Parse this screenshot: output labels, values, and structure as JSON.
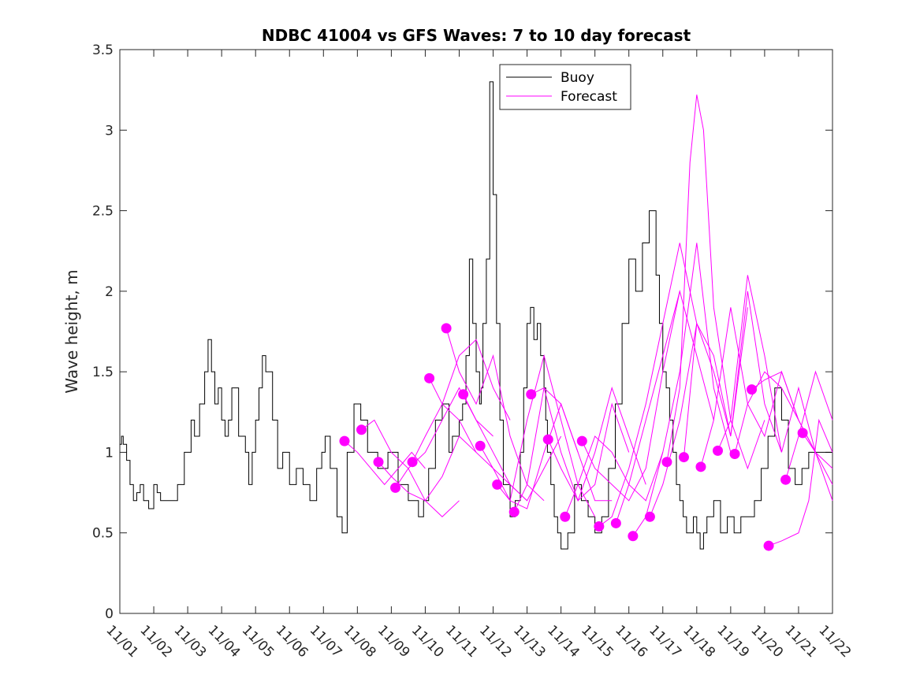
{
  "chart_data": {
    "type": "line",
    "title": "NDBC 41004 vs GFS Waves: 7 to 10 day forecast",
    "xlabel": "",
    "ylabel": "Wave height, m",
    "xlim": [
      0,
      21
    ],
    "ylim": [
      0,
      3.5
    ],
    "x_tick_labels": [
      "11/01",
      "11/02",
      "11/03",
      "11/04",
      "11/05",
      "11/06",
      "11/07",
      "11/08",
      "11/09",
      "11/10",
      "11/11",
      "11/12",
      "11/13",
      "11/14",
      "11/15",
      "11/16",
      "11/17",
      "11/18",
      "11/19",
      "11/20",
      "11/21",
      "11/22"
    ],
    "y_tick_labels": [
      "0",
      "0.5",
      "1",
      "1.5",
      "2",
      "2.5",
      "3",
      "3.5"
    ],
    "y_tick_values": [
      0,
      0.5,
      1,
      1.5,
      2,
      2.5,
      3,
      3.5
    ],
    "legend": [
      "Buoy",
      "Forecast"
    ],
    "legend_position": "top-center",
    "colors": {
      "buoy": "#000000",
      "forecast": "#ff00ff"
    },
    "series": [
      {
        "name": "Buoy",
        "x": [
          0,
          0.05,
          0.1,
          0.2,
          0.3,
          0.4,
          0.5,
          0.6,
          0.7,
          0.85,
          1.0,
          1.1,
          1.2,
          1.3,
          1.5,
          1.7,
          1.9,
          2.1,
          2.2,
          2.35,
          2.5,
          2.6,
          2.7,
          2.8,
          2.9,
          3.0,
          3.1,
          3.2,
          3.3,
          3.5,
          3.7,
          3.8,
          3.9,
          4.0,
          4.1,
          4.2,
          4.3,
          4.5,
          4.65,
          4.8,
          5.0,
          5.2,
          5.4,
          5.6,
          5.8,
          5.95,
          6.05,
          6.2,
          6.4,
          6.55,
          6.7,
          6.9,
          7.1,
          7.3,
          7.6,
          7.9,
          8.2,
          8.5,
          8.8,
          8.95,
          9.1,
          9.3,
          9.5,
          9.7,
          9.8,
          9.9,
          10.0,
          10.1,
          10.2,
          10.3,
          10.4,
          10.5,
          10.6,
          10.65,
          10.7,
          10.8,
          10.9,
          11.0,
          11.1,
          11.2,
          11.3,
          11.5,
          11.65,
          11.8,
          11.9,
          12.0,
          12.1,
          12.2,
          12.3,
          12.4,
          12.5,
          12.55,
          12.6,
          12.7,
          12.8,
          12.9,
          13.0,
          13.1,
          13.2,
          13.4,
          13.6,
          13.8,
          14.0,
          14.2,
          14.4,
          14.6,
          14.8,
          15.0,
          15.2,
          15.4,
          15.6,
          15.8,
          15.9,
          16.0,
          16.1,
          16.2,
          16.3,
          16.4,
          16.5,
          16.6,
          16.7,
          16.8,
          16.9,
          17.0,
          17.1,
          17.2,
          17.3,
          17.5,
          17.7,
          17.9,
          18.1,
          18.3,
          18.5,
          18.7,
          18.9,
          19.1,
          19.3,
          19.5,
          19.7,
          19.9,
          20.1,
          20.3,
          20.5,
          20.7,
          20.8,
          20.9,
          21.0
        ],
        "values": [
          1.05,
          1.1,
          1.05,
          0.95,
          0.8,
          0.7,
          0.75,
          0.8,
          0.7,
          0.65,
          0.8,
          0.75,
          0.7,
          0.7,
          0.7,
          0.8,
          1.0,
          1.2,
          1.1,
          1.3,
          1.5,
          1.7,
          1.5,
          1.3,
          1.4,
          1.2,
          1.1,
          1.2,
          1.4,
          1.1,
          1.0,
          0.8,
          1.0,
          1.2,
          1.4,
          1.6,
          1.5,
          1.2,
          0.9,
          1.0,
          0.8,
          0.9,
          0.8,
          0.7,
          0.9,
          1.0,
          1.1,
          0.9,
          0.6,
          0.5,
          1.0,
          1.3,
          1.2,
          1.0,
          0.9,
          1.0,
          0.8,
          0.7,
          0.6,
          0.7,
          0.9,
          1.2,
          1.3,
          1.0,
          1.1,
          1.1,
          1.2,
          1.3,
          1.6,
          2.2,
          1.8,
          1.5,
          1.3,
          1.4,
          1.8,
          2.2,
          3.3,
          2.6,
          1.8,
          1.2,
          0.8,
          0.6,
          0.7,
          1.0,
          1.4,
          1.8,
          1.9,
          1.7,
          1.8,
          1.6,
          1.4,
          1.2,
          1.0,
          0.8,
          0.6,
          0.5,
          0.4,
          0.4,
          0.5,
          0.8,
          0.7,
          0.6,
          0.5,
          0.6,
          0.9,
          1.3,
          1.8,
          2.2,
          2.0,
          2.3,
          2.5,
          2.1,
          1.8,
          1.5,
          1.4,
          1.2,
          1.0,
          0.8,
          0.7,
          0.6,
          0.5,
          0.5,
          0.6,
          0.5,
          0.4,
          0.5,
          0.6,
          0.7,
          0.5,
          0.6,
          0.5,
          0.6,
          0.6,
          0.7,
          0.9,
          1.1,
          1.4,
          1.2,
          0.9,
          0.8,
          0.9,
          1.0,
          1.0,
          1.0,
          1.0,
          1.0,
          1.0
        ],
        "color": "#000000"
      },
      {
        "name": "Forecast",
        "runs": [
          {
            "start": [
              6.62,
              1.07
            ],
            "x": [
              6.62,
              7.0,
              7.4,
              7.8,
              8.2,
              8.6,
              9.0
            ],
            "values": [
              1.07,
              1.0,
              0.9,
              0.8,
              0.9,
              1.0,
              0.9
            ]
          },
          {
            "start": [
              7.12,
              1.14
            ],
            "x": [
              7.12,
              7.5,
              8.0,
              8.5,
              9.0,
              9.5,
              10.0
            ],
            "values": [
              1.14,
              1.2,
              1.0,
              0.9,
              0.7,
              0.6,
              0.7
            ]
          },
          {
            "start": [
              7.62,
              0.94
            ],
            "x": [
              7.62,
              8.0,
              8.5,
              9.0,
              9.5,
              10.0,
              10.5
            ],
            "values": [
              0.94,
              0.85,
              0.75,
              0.7,
              0.85,
              1.1,
              1.0
            ]
          },
          {
            "start": [
              8.12,
              0.78
            ],
            "x": [
              8.12,
              8.5,
              9.0,
              9.5,
              10.0,
              10.5,
              11.0
            ],
            "values": [
              0.78,
              0.9,
              1.0,
              1.2,
              1.4,
              1.2,
              1.1
            ]
          },
          {
            "start": [
              8.62,
              0.94
            ],
            "x": [
              8.62,
              9.0,
              9.5,
              10.0,
              10.5,
              11.0,
              11.5
            ],
            "values": [
              0.94,
              1.1,
              1.3,
              1.6,
              1.7,
              1.4,
              1.2
            ]
          },
          {
            "start": [
              9.12,
              1.46
            ],
            "x": [
              9.12,
              9.5,
              10.0,
              10.5,
              11.0,
              11.5,
              12.0
            ],
            "values": [
              1.46,
              1.3,
              1.2,
              1.0,
              0.9,
              0.8,
              0.7
            ]
          },
          {
            "start": [
              9.62,
              1.77
            ],
            "x": [
              9.62,
              10.0,
              10.5,
              11.0,
              11.5,
              12.0,
              12.5
            ],
            "values": [
              1.77,
              1.5,
              1.3,
              1.6,
              1.1,
              0.8,
              0.7
            ]
          },
          {
            "start": [
              10.12,
              1.36
            ],
            "x": [
              10.12,
              10.5,
              11.0,
              11.5,
              12.0,
              12.5,
              13.0
            ],
            "values": [
              1.36,
              1.2,
              1.0,
              0.8,
              0.7,
              0.9,
              1.1
            ]
          },
          {
            "start": [
              10.62,
              1.04
            ],
            "x": [
              10.62,
              11.0,
              11.5,
              12.0,
              12.5,
              13.0,
              13.5
            ],
            "values": [
              1.04,
              0.9,
              0.7,
              0.65,
              1.0,
              1.3,
              1.0
            ]
          },
          {
            "start": [
              11.12,
              0.8
            ],
            "x": [
              11.12,
              11.5,
              12.0,
              12.5,
              13.0,
              13.5,
              14.0
            ],
            "values": [
              0.8,
              0.7,
              1.2,
              1.6,
              1.2,
              0.8,
              0.6
            ]
          },
          {
            "start": [
              11.62,
              0.63
            ],
            "x": [
              11.62,
              12.0,
              12.5,
              13.0,
              13.5,
              14.0,
              14.5
            ],
            "values": [
              0.63,
              0.8,
              1.4,
              1.3,
              1.0,
              0.7,
              0.7
            ]
          },
          {
            "start": [
              12.12,
              1.36
            ],
            "x": [
              12.12,
              12.5,
              13.0,
              13.5,
              14.0,
              14.5,
              15.0
            ],
            "values": [
              1.36,
              1.4,
              1.0,
              0.7,
              0.8,
              1.3,
              1.0
            ]
          },
          {
            "start": [
              12.62,
              1.08
            ],
            "x": [
              12.62,
              13.0,
              13.5,
              14.0,
              14.5,
              15.0,
              15.5
            ],
            "values": [
              1.08,
              0.9,
              0.7,
              1.0,
              1.4,
              1.1,
              0.8
            ]
          },
          {
            "start": [
              13.12,
              0.6
            ],
            "x": [
              13.12,
              13.5,
              14.0,
              14.5,
              15.0,
              15.5,
              16.0
            ],
            "values": [
              0.6,
              0.8,
              1.1,
              1.0,
              0.8,
              0.7,
              1.0
            ]
          },
          {
            "start": [
              13.62,
              1.07
            ],
            "x": [
              13.62,
              14.0,
              14.5,
              15.0,
              15.5,
              16.0,
              16.5
            ],
            "values": [
              1.07,
              0.9,
              0.8,
              0.7,
              0.9,
              1.5,
              2.0
            ]
          },
          {
            "start": [
              14.12,
              0.54
            ],
            "x": [
              14.12,
              14.5,
              15.0,
              15.5,
              16.0,
              16.5,
              17.0
            ],
            "values": [
              0.54,
              0.6,
              0.9,
              1.3,
              1.8,
              2.3,
              1.8
            ]
          },
          {
            "start": [
              14.62,
              0.56
            ],
            "x": [
              14.62,
              15.0,
              15.5,
              16.0,
              16.5,
              17.0,
              17.5
            ],
            "values": [
              0.56,
              0.8,
              1.2,
              1.6,
              2.0,
              1.6,
              1.2
            ]
          },
          {
            "start": [
              15.12,
              0.48
            ],
            "x": [
              15.12,
              15.5,
              16.0,
              16.5,
              17.0,
              17.5,
              18.0
            ],
            "values": [
              0.48,
              0.6,
              1.0,
              1.5,
              2.3,
              1.4,
              1.0
            ]
          },
          {
            "start": [
              15.62,
              0.6
            ],
            "x": [
              15.62,
              16.0,
              16.5,
              17.0,
              17.5,
              18.0,
              18.5
            ],
            "values": [
              0.6,
              0.8,
              1.2,
              1.8,
              1.6,
              1.1,
              1.9
            ]
          },
          {
            "start": [
              16.12,
              0.94
            ],
            "x": [
              16.12,
              16.5,
              16.8,
              17.0,
              17.2,
              17.5,
              18.0,
              18.5,
              19.0
            ],
            "values": [
              0.94,
              1.4,
              2.8,
              3.22,
              3.0,
              1.9,
              1.2,
              0.9,
              1.2
            ]
          },
          {
            "start": [
              16.62,
              0.97
            ],
            "x": [
              16.62,
              17.0,
              17.5,
              18.0,
              18.5,
              19.0,
              19.5
            ],
            "values": [
              0.97,
              1.8,
              1.5,
              1.1,
              2.0,
              1.3,
              1.0
            ]
          },
          {
            "start": [
              17.12,
              0.91
            ],
            "x": [
              17.12,
              17.5,
              18.0,
              18.5,
              19.0,
              19.5,
              20.0
            ],
            "values": [
              0.91,
              1.2,
              1.9,
              1.3,
              1.1,
              1.5,
              1.2
            ]
          },
          {
            "start": [
              17.62,
              1.01
            ],
            "x": [
              17.62,
              18.0,
              18.5,
              19.0,
              19.5,
              20.0,
              20.5
            ],
            "values": [
              1.01,
              1.2,
              2.1,
              1.6,
              1.0,
              1.4,
              1.0
            ]
          },
          {
            "start": [
              18.12,
              0.99
            ],
            "x": [
              18.12,
              18.5,
              19.0,
              19.5,
              20.0,
              20.5,
              21.0
            ],
            "values": [
              0.99,
              1.3,
              1.5,
              1.4,
              1.2,
              1.0,
              0.9
            ]
          },
          {
            "start": [
              18.62,
              1.39
            ],
            "x": [
              18.62,
              19.0,
              19.5,
              20.0,
              20.5,
              21.0
            ],
            "values": [
              1.39,
              1.45,
              1.5,
              1.2,
              1.0,
              0.8
            ]
          },
          {
            "start": [
              19.12,
              0.42
            ],
            "x": [
              19.12,
              19.5,
              20.0,
              20.3,
              20.6,
              21.0
            ],
            "values": [
              0.42,
              0.45,
              0.5,
              0.7,
              1.2,
              1.0
            ]
          },
          {
            "start": [
              19.62,
              0.83
            ],
            "x": [
              19.62,
              20.0,
              20.5,
              21.0
            ],
            "values": [
              0.83,
              1.1,
              1.5,
              1.2
            ]
          },
          {
            "start": [
              20.12,
              1.12
            ],
            "x": [
              20.12,
              20.5,
              21.0
            ],
            "values": [
              1.12,
              1.0,
              0.7
            ]
          }
        ],
        "color": "#ff00ff"
      }
    ]
  }
}
